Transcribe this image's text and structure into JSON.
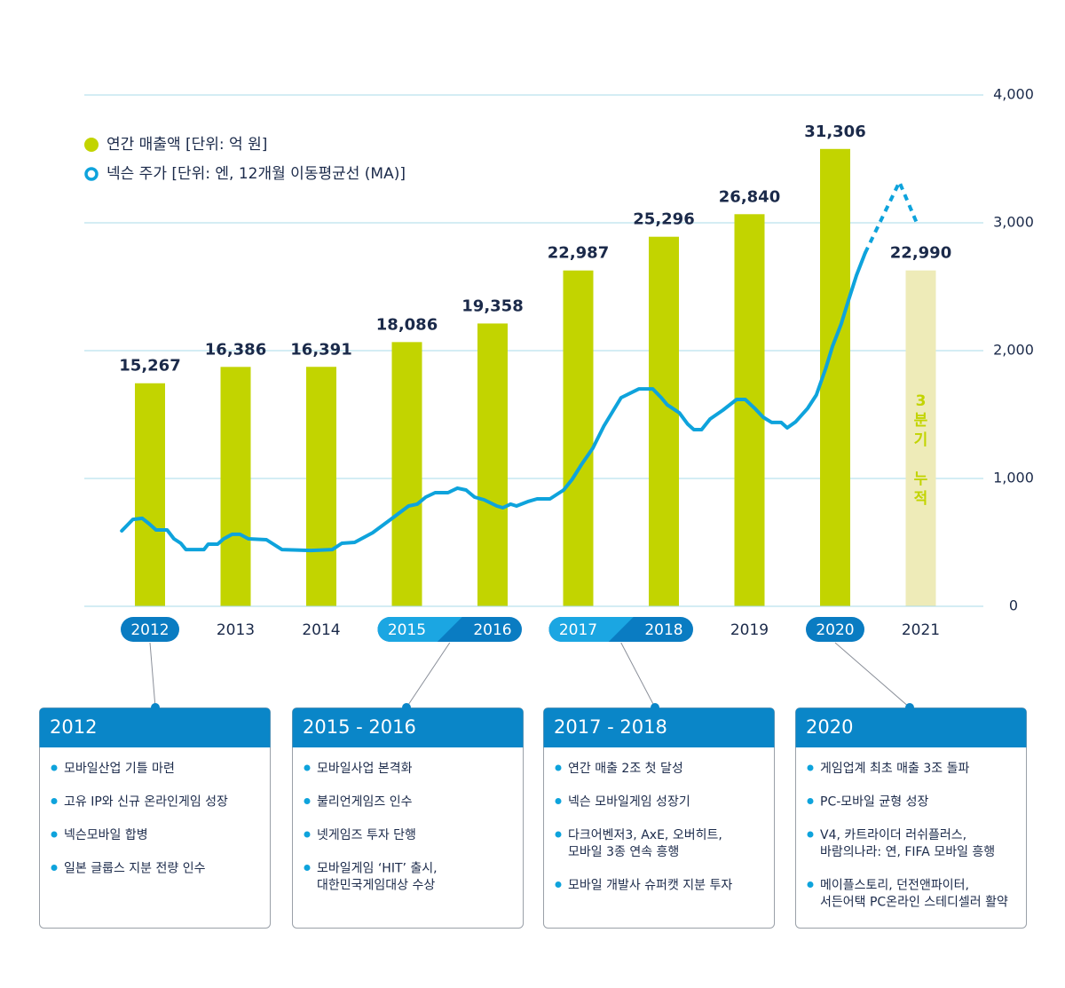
{
  "chart_data": {
    "type": "bar",
    "categories": [
      "2012",
      "2013",
      "2014",
      "2015",
      "2016",
      "2017",
      "2018",
      "2019",
      "2020",
      "2021"
    ],
    "ylim": [
      0,
      35000
    ],
    "y2lim": [
      0,
      4000
    ],
    "y2ticks": [
      {
        "value": 4000,
        "label": "4,000"
      },
      {
        "value": 3000,
        "label": "3,000"
      },
      {
        "value": 2000,
        "label": "2,000"
      },
      {
        "value": 1000,
        "label": "1,000"
      },
      0
    ],
    "grid": true,
    "annotation": "3분기 누적",
    "annotation_color": "#c2d400",
    "series": [
      {
        "name": "연간 매출액 [단위: 억 원]",
        "type": "bar",
        "color": "#c2d400",
        "colors": [
          "#c2d400",
          "#c2d400",
          "#c2d400",
          "#c2d400",
          "#c2d400",
          "#c2d400",
          "#c2d400",
          "#c2d400",
          "#c2d400",
          "#eeebb8"
        ],
        "values": [
          15267,
          16386,
          16391,
          18086,
          19358,
          22987,
          25296,
          26840,
          31306,
          22990
        ],
        "value_labels": [
          "15,267",
          "16,386",
          "16,391",
          "18,086",
          "19,358",
          "22,987",
          "25,296",
          "26,840",
          "31,306",
          "22,990"
        ]
      },
      {
        "name": "넥슨 주가 [단위: 엔, 12개월 이동평균선 (MA)]",
        "type": "line",
        "axis": "y2",
        "color": "#0ea3dc",
        "x": [
          2011.67,
          2011.8,
          2011.91,
          2011.99,
          2012.07,
          2012.2,
          2012.28,
          2012.36,
          2012.42,
          2012.63,
          2012.68,
          2012.79,
          2012.86,
          2012.96,
          2013.05,
          2013.15,
          2013.36,
          2013.54,
          2013.88,
          2014.13,
          2014.24,
          2014.39,
          2014.6,
          2014.81,
          2015.02,
          2015.12,
          2015.22,
          2015.33,
          2015.48,
          2015.59,
          2015.69,
          2015.79,
          2015.9,
          2016.05,
          2016.12,
          2016.21,
          2016.28,
          2016.41,
          2016.52,
          2016.67,
          2016.83,
          2016.93,
          2017.04,
          2017.17,
          2017.3,
          2017.5,
          2017.71,
          2017.87,
          2017.97,
          2018.04,
          2018.18,
          2018.28,
          2018.35,
          2018.44,
          2018.54,
          2018.69,
          2018.85,
          2018.95,
          2019.06,
          2019.16,
          2019.26,
          2019.37,
          2019.44,
          2019.54,
          2019.68,
          2019.78,
          2019.89,
          2019.97,
          2020.07,
          2020.15,
          2020.25,
          2020.35
        ],
        "values": [
          590,
          680,
          688,
          646,
          597,
          597,
          528,
          493,
          444,
          444,
          486,
          486,
          528,
          563,
          563,
          528,
          521,
          444,
          437,
          444,
          493,
          500,
          576,
          680,
          785,
          799,
          854,
          889,
          889,
          924,
          910,
          854,
          833,
          785,
          771,
          799,
          785,
          819,
          840,
          840,
          910,
          993,
          1111,
          1236,
          1410,
          1632,
          1701,
          1701,
          1632,
          1576,
          1514,
          1424,
          1382,
          1382,
          1465,
          1535,
          1618,
          1618,
          1549,
          1479,
          1438,
          1438,
          1396,
          1444,
          1549,
          1653,
          1861,
          2035,
          2208,
          2382,
          2590,
          2764
        ],
        "projection": {
          "x": [
            2020.35,
            2020.75,
            2020.97
          ],
          "values": [
            2764,
            3319,
            2972
          ],
          "dashed": true
        }
      }
    ]
  },
  "notes": [
    {
      "title": "2012",
      "items": [
        [
          "모바일산업 기틀 마련"
        ],
        [
          "고유 IP와 신규 온라인게임 성장"
        ],
        [
          "넥슨모바일 합병"
        ],
        [
          "일본 글룹스 지분 전량 인수"
        ]
      ]
    },
    {
      "title": "2015 - 2016",
      "items": [
        [
          "모바일사업 본격화"
        ],
        [
          "불리언게임즈 인수"
        ],
        [
          "넷게임즈 투자 단행"
        ],
        [
          "모바일게임 ‘HIT’ 출시,",
          "대한민국게임대상 수상"
        ]
      ]
    },
    {
      "title": "2017 - 2018",
      "items": [
        [
          "연간 매출 2조 첫 달성"
        ],
        [
          "넥슨 모바일게임 성장기"
        ],
        [
          "다크어벤저3, AxE, 오버히트,",
          "모바일 3종 연속 흥행"
        ],
        [
          "모바일 개발사 슈퍼캣 지분 투자"
        ]
      ]
    },
    {
      "title": "2020",
      "items": [
        [
          "게임업계 최초 매출 3조 돌파"
        ],
        [
          "PC-모바일 균형 성장"
        ],
        [
          "V4, 카트라이더 러쉬플러스,",
          "바람의나라: 연, FIFA 모바일 흥행"
        ],
        [
          "메이플스토리, 던전앤파이터,",
          "서든어택 PC온라인 스테디셀러 활약"
        ]
      ]
    }
  ]
}
